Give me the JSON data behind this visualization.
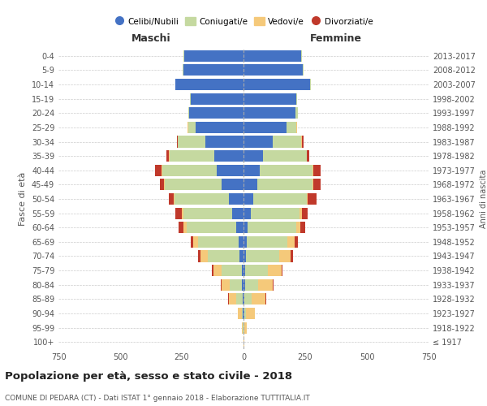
{
  "age_groups": [
    "100+",
    "95-99",
    "90-94",
    "85-89",
    "80-84",
    "75-79",
    "70-74",
    "65-69",
    "60-64",
    "55-59",
    "50-54",
    "45-49",
    "40-44",
    "35-39",
    "30-34",
    "25-29",
    "20-24",
    "15-19",
    "10-14",
    "5-9",
    "0-4"
  ],
  "birth_years": [
    "≤ 1917",
    "1918-1922",
    "1923-1927",
    "1928-1932",
    "1933-1937",
    "1938-1942",
    "1943-1947",
    "1948-1952",
    "1953-1957",
    "1958-1962",
    "1963-1967",
    "1968-1972",
    "1973-1977",
    "1978-1982",
    "1983-1987",
    "1988-1992",
    "1993-1997",
    "1998-2002",
    "2003-2007",
    "2008-2012",
    "2013-2017"
  ],
  "colors": {
    "celibe": "#4472c4",
    "coniugato": "#c5d9a0",
    "vedovo": "#f5c97a",
    "divorziato": "#c0392b"
  },
  "maschi": {
    "celibe": [
      0,
      1,
      2,
      4,
      5,
      8,
      15,
      20,
      30,
      45,
      60,
      90,
      110,
      120,
      155,
      195,
      220,
      215,
      275,
      245,
      240
    ],
    "coniugato": [
      0,
      2,
      5,
      25,
      50,
      80,
      130,
      165,
      200,
      200,
      220,
      230,
      220,
      180,
      110,
      30,
      5,
      2,
      2,
      2,
      2
    ],
    "vedovo": [
      0,
      4,
      15,
      30,
      35,
      35,
      30,
      20,
      12,
      5,
      3,
      2,
      2,
      1,
      1,
      1,
      0,
      0,
      0,
      0,
      0
    ],
    "divorziato": [
      0,
      0,
      0,
      2,
      3,
      5,
      10,
      10,
      20,
      25,
      20,
      18,
      25,
      10,
      5,
      2,
      0,
      0,
      0,
      0,
      0
    ]
  },
  "femmine": {
    "nubile": [
      0,
      1,
      3,
      4,
      5,
      8,
      10,
      12,
      18,
      28,
      40,
      55,
      65,
      80,
      120,
      175,
      210,
      215,
      270,
      240,
      235
    ],
    "coniugata": [
      0,
      2,
      8,
      30,
      55,
      90,
      135,
      165,
      195,
      200,
      215,
      225,
      215,
      175,
      115,
      40,
      10,
      2,
      2,
      2,
      2
    ],
    "vedova": [
      2,
      10,
      35,
      55,
      60,
      55,
      45,
      30,
      18,
      10,
      5,
      3,
      3,
      2,
      1,
      1,
      0,
      0,
      0,
      0,
      0
    ],
    "divorziata": [
      0,
      0,
      0,
      2,
      3,
      6,
      10,
      12,
      20,
      22,
      35,
      30,
      30,
      10,
      6,
      2,
      0,
      0,
      0,
      0,
      0
    ]
  },
  "title": "Popolazione per età, sesso e stato civile - 2018",
  "subtitle": "COMUNE DI PEDARA (CT) - Dati ISTAT 1° gennaio 2018 - Elaborazione TUTTITALIA.IT",
  "xlabel_left": "Maschi",
  "xlabel_right": "Femmine",
  "ylabel_left": "Fasce di età",
  "ylabel_right": "Anni di nascita",
  "xlim": 750,
  "background_color": "#ffffff",
  "grid_color": "#cccccc"
}
